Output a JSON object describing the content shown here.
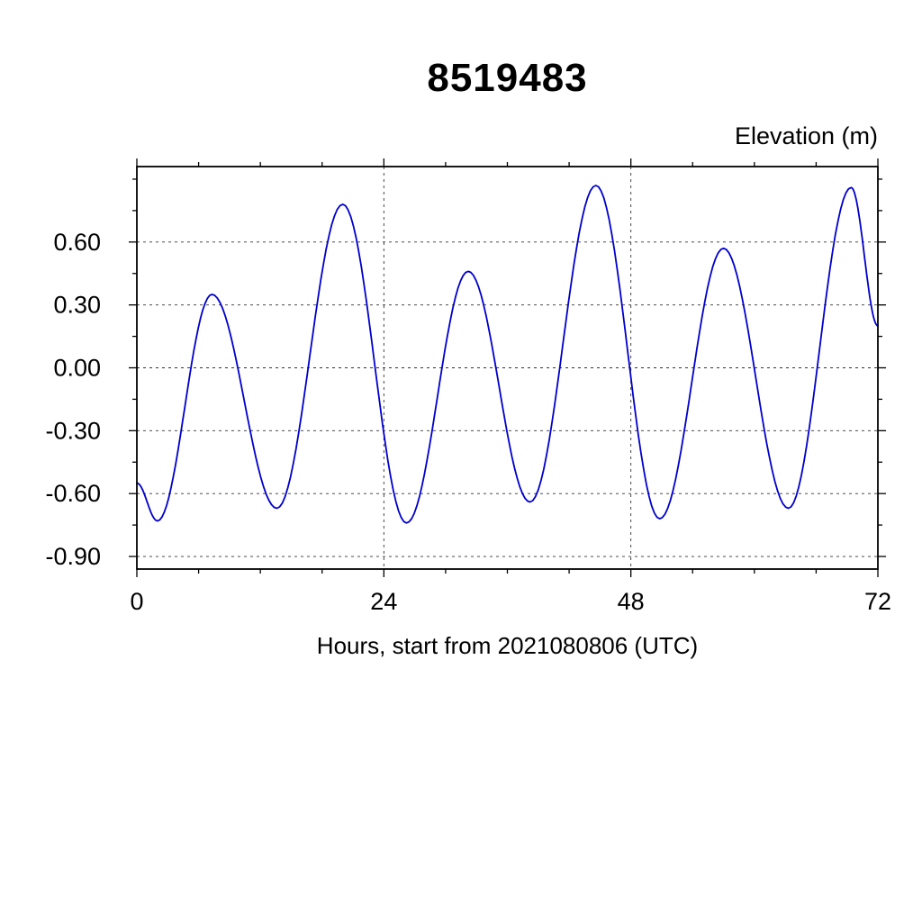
{
  "chart_data": {
    "type": "line",
    "title": "8519483",
    "ylabel": "Elevation (m)",
    "xlabel": "Hours, start from 2021080806 (UTC)",
    "xlim": [
      0,
      72
    ],
    "ylim": [
      -0.96,
      0.96
    ],
    "xticks": {
      "major": [
        0,
        24,
        48,
        72
      ],
      "labels": [
        "0",
        "24",
        "48",
        "72"
      ],
      "minor_step": 6
    },
    "yticks": {
      "major": [
        -0.9,
        -0.6,
        -0.3,
        0.0,
        0.3,
        0.6
      ],
      "labels": [
        "-0.90",
        "-0.60",
        "-0.30",
        "0.00",
        "0.30",
        "0.60"
      ],
      "minor_step": 0.15
    },
    "grid": {
      "x_values": [
        24,
        48
      ],
      "y_values": [
        -0.9,
        -0.6,
        -0.3,
        0.0,
        0.3,
        0.6
      ],
      "style": "dashed",
      "color": "#333333"
    },
    "series": [
      {
        "name": "tidal-elevation",
        "color": "#0000cd",
        "interpolation": "cosine-between-extremes",
        "points": [
          [
            0.0,
            -0.55
          ],
          [
            2.0,
            -0.73
          ],
          [
            7.3,
            0.35
          ],
          [
            13.6,
            -0.67
          ],
          [
            20.0,
            0.78
          ],
          [
            26.2,
            -0.74
          ],
          [
            32.2,
            0.46
          ],
          [
            38.2,
            -0.64
          ],
          [
            44.6,
            0.87
          ],
          [
            50.8,
            -0.72
          ],
          [
            57.0,
            0.57
          ],
          [
            63.3,
            -0.67
          ],
          [
            69.4,
            0.86
          ],
          [
            72.0,
            0.2
          ]
        ]
      }
    ],
    "frame_color": "#000000",
    "legend": "none"
  }
}
